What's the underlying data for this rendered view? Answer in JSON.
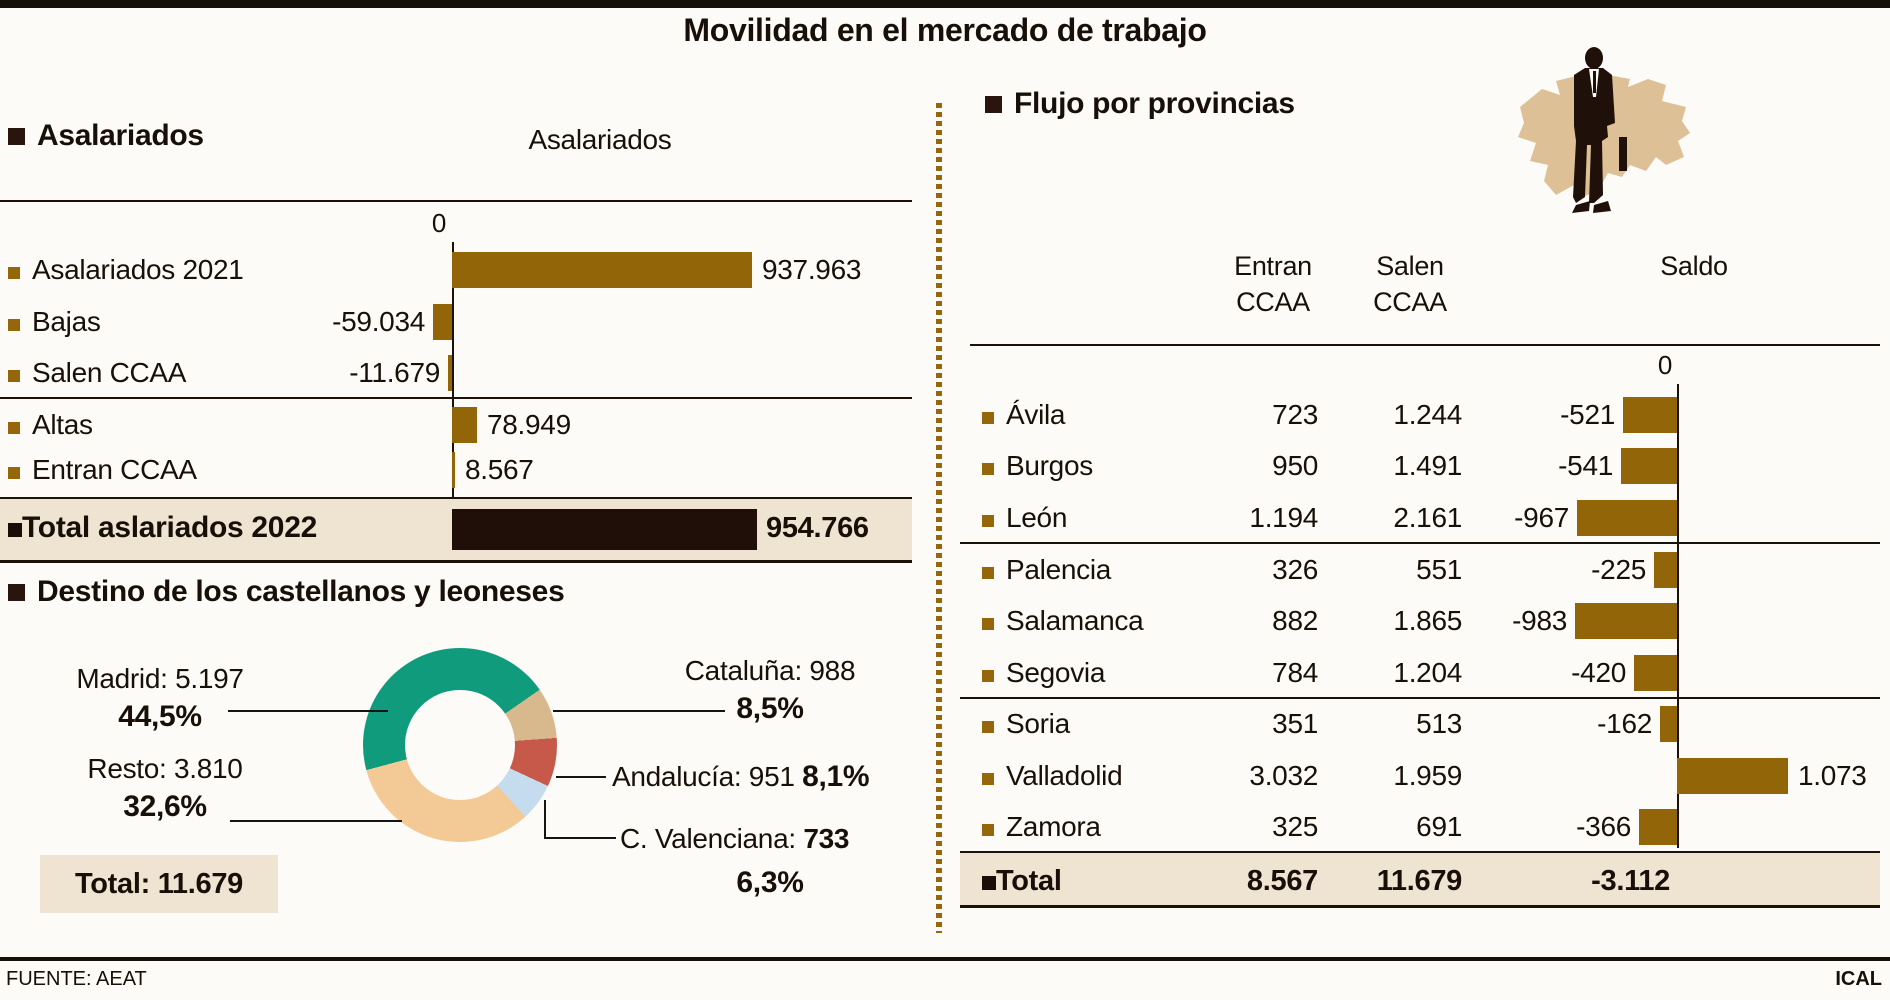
{
  "title": "Movilidad en el mercado de trabajo",
  "colors": {
    "bar_gold": "#926509",
    "bar_black": "#200F08",
    "band_beige": "#EFE3D1",
    "rule_black": "#1A1208",
    "map_tan": "#DEC096",
    "silhouette": "#1F1009"
  },
  "asalariados": {
    "heading": "Asalariados",
    "chart_label": "Asalariados",
    "zero_label": "0",
    "rows": [
      {
        "label": "Asalariados 2021",
        "value": 937963,
        "display": "937.963"
      },
      {
        "label": "Bajas",
        "value": -59034,
        "display": "-59.034"
      },
      {
        "label": "Salen CCAA",
        "value": -11679,
        "display": "-11.679"
      },
      {
        "label": "Altas",
        "value": 78949,
        "display": "78.949"
      },
      {
        "label": "Entran CCAA",
        "value": 8567,
        "display": "8.567"
      }
    ],
    "total": {
      "label": "Total aslariados 2022",
      "value": 954766,
      "display": "954.766"
    }
  },
  "destino": {
    "heading": "Destino de los castellanos y leoneses",
    "slices": [
      {
        "name": "Madrid",
        "value": 5197,
        "label": "Madrid: 5.197",
        "pct": 44.5,
        "pct_label": "44,5%",
        "color": "#109B7D"
      },
      {
        "name": "Cataluña",
        "value": 988,
        "label": "Cataluña: 988",
        "pct": 8.5,
        "pct_label": "8,5%",
        "color": "#D8B98E"
      },
      {
        "name": "Andalucía",
        "value": 951,
        "label": "Andalucía: 951",
        "pct": 8.1,
        "pct_label": "8,1%",
        "color": "#C7594B"
      },
      {
        "name": "C. Valenciana",
        "value": 733,
        "label_prefix": "C. Valenciana: ",
        "value_display": "733",
        "pct": 6.3,
        "pct_label": "6,3%",
        "color": "#C5DCEF"
      },
      {
        "name": "Resto",
        "value": 3810,
        "label": "Resto: 3.810",
        "pct": 32.6,
        "pct_label": "32,6%",
        "color": "#F3CA96"
      }
    ],
    "start_angle_deg": 255,
    "total_label": "Total: 11.679"
  },
  "flujo": {
    "heading": "Flujo por provincias",
    "col_headers": {
      "entran_1": "Entran",
      "entran_2": "CCAA",
      "salen_1": "Salen",
      "salen_2": "CCAA",
      "saldo": "Saldo"
    },
    "zero_label": "0",
    "rows": [
      {
        "name": "Ávila",
        "entran": "723",
        "salen": "1.244",
        "saldo": -521,
        "saldo_display": "-521"
      },
      {
        "name": "Burgos",
        "entran": "950",
        "salen": "1.491",
        "saldo": -541,
        "saldo_display": "-541"
      },
      {
        "name": "León",
        "entran": "1.194",
        "salen": "2.161",
        "saldo": -967,
        "saldo_display": "-967"
      },
      {
        "name": "Palencia",
        "entran": "326",
        "salen": "551",
        "saldo": -225,
        "saldo_display": "-225"
      },
      {
        "name": "Salamanca",
        "entran": "882",
        "salen": "1.865",
        "saldo": -983,
        "saldo_display": "-983"
      },
      {
        "name": "Segovia",
        "entran": "784",
        "salen": "1.204",
        "saldo": -420,
        "saldo_display": "-420"
      },
      {
        "name": "Soria",
        "entran": "351",
        "salen": "513",
        "saldo": -162,
        "saldo_display": "-162"
      },
      {
        "name": "Valladolid",
        "entran": "3.032",
        "salen": "1.959",
        "saldo": 1073,
        "saldo_display": "1.073"
      },
      {
        "name": "Zamora",
        "entran": "325",
        "salen": "691",
        "saldo": -366,
        "saldo_display": "-366"
      }
    ],
    "total": {
      "name": "Total",
      "entran": "8.567",
      "salen": "11.679",
      "saldo_display": "-3.112"
    }
  },
  "footer": {
    "source": "FUENTE: AEAT",
    "credit": "ICAL"
  },
  "chart_data": [
    {
      "type": "bar",
      "orientation": "horizontal",
      "title": "Asalariados",
      "categories": [
        "Asalariados 2021",
        "Bajas",
        "Salen CCAA",
        "Altas",
        "Entran CCAA",
        "Total aslariados 2022"
      ],
      "values": [
        937963,
        -59034,
        -11679,
        78949,
        8567,
        954766
      ],
      "value_labels": [
        "937.963",
        "-59.034",
        "-11.679",
        "78.949",
        "8.567",
        "954.766"
      ],
      "xlabel": "",
      "ylabel": "",
      "axis_zero_label": "0",
      "grid": false
    },
    {
      "type": "pie",
      "title": "Destino de los castellanos y leoneses",
      "labels": [
        "Madrid",
        "Cataluña",
        "Andalucía",
        "C. Valenciana",
        "Resto"
      ],
      "values": [
        5197,
        988,
        951,
        733,
        3810
      ],
      "percentages": [
        44.5,
        8.5,
        8.1,
        6.3,
        32.6
      ],
      "total": 11679,
      "donut": true
    },
    {
      "type": "table",
      "title": "Flujo por provincias",
      "columns": [
        "Entran CCAA",
        "Salen CCAA",
        "Saldo"
      ],
      "rows": [
        [
          "Ávila",
          723,
          1244,
          -521
        ],
        [
          "Burgos",
          950,
          1491,
          -541
        ],
        [
          "León",
          1194,
          2161,
          -967
        ],
        [
          "Palencia",
          326,
          551,
          -225
        ],
        [
          "Salamanca",
          882,
          1865,
          -983
        ],
        [
          "Segovia",
          784,
          1204,
          -420
        ],
        [
          "Soria",
          351,
          513,
          -162
        ],
        [
          "Valladolid",
          3032,
          1959,
          1073
        ],
        [
          "Zamora",
          325,
          691,
          -366
        ]
      ],
      "total_row": [
        "Total",
        8567,
        11679,
        -3112
      ],
      "saldo_rendered_as": "bar"
    }
  ]
}
